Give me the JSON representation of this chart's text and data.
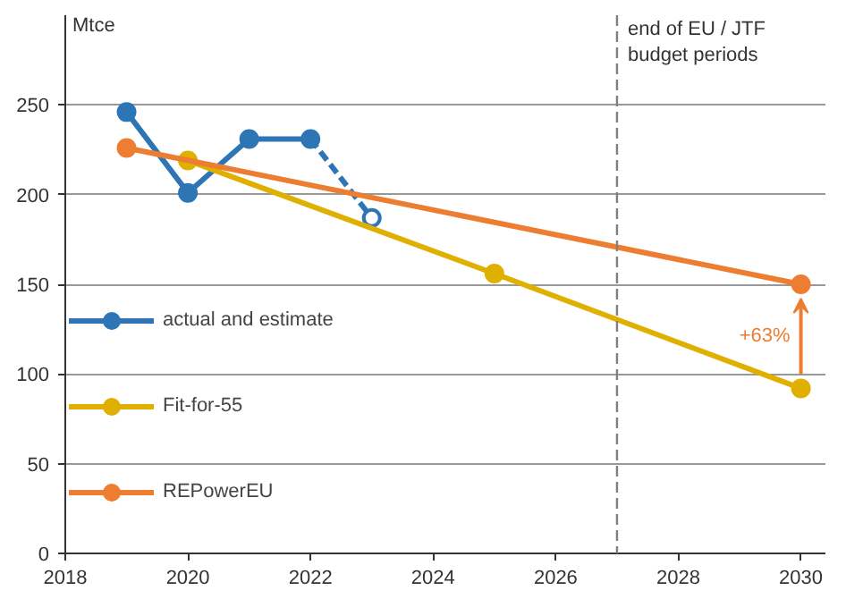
{
  "chart_data": {
    "type": "line",
    "ylabel": "Mtce",
    "xlim": [
      2018,
      2030.4
    ],
    "xticks": [
      2018,
      2020,
      2022,
      2024,
      2026,
      2028,
      2030
    ],
    "ylim": [
      0,
      300
    ],
    "yticks": [
      0,
      50,
      100,
      150,
      200,
      250
    ],
    "grid": "y",
    "legend": "left",
    "marker": "circle",
    "line_style": "solid",
    "series": [
      {
        "name": "actual and estimate",
        "color": "#2e75b6",
        "x": [
          2019,
          2020,
          2021,
          2022
        ],
        "values": [
          246,
          201,
          231,
          231
        ]
      },
      {
        "color": "#2e75b6",
        "x": [
          2022,
          2023
        ],
        "values": [
          231,
          187
        ],
        "line_style": "dashed"
      },
      {
        "name": "Fit-for-55",
        "color": "#e0b000",
        "x": [
          2020,
          2025,
          2030
        ],
        "values": [
          219,
          156,
          92
        ]
      },
      {
        "name": "REPowerEU",
        "color": "#ed7d31",
        "x": [
          2019,
          2030
        ],
        "values": [
          226,
          150
        ]
      }
    ],
    "ref_lines": [
      {
        "axis": "x",
        "value": 2027,
        "label": "end of EU / JTF\nbudget periods",
        "color": "#808080",
        "line_style": "dashed"
      }
    ],
    "annotations": [
      "+63%"
    ]
  }
}
